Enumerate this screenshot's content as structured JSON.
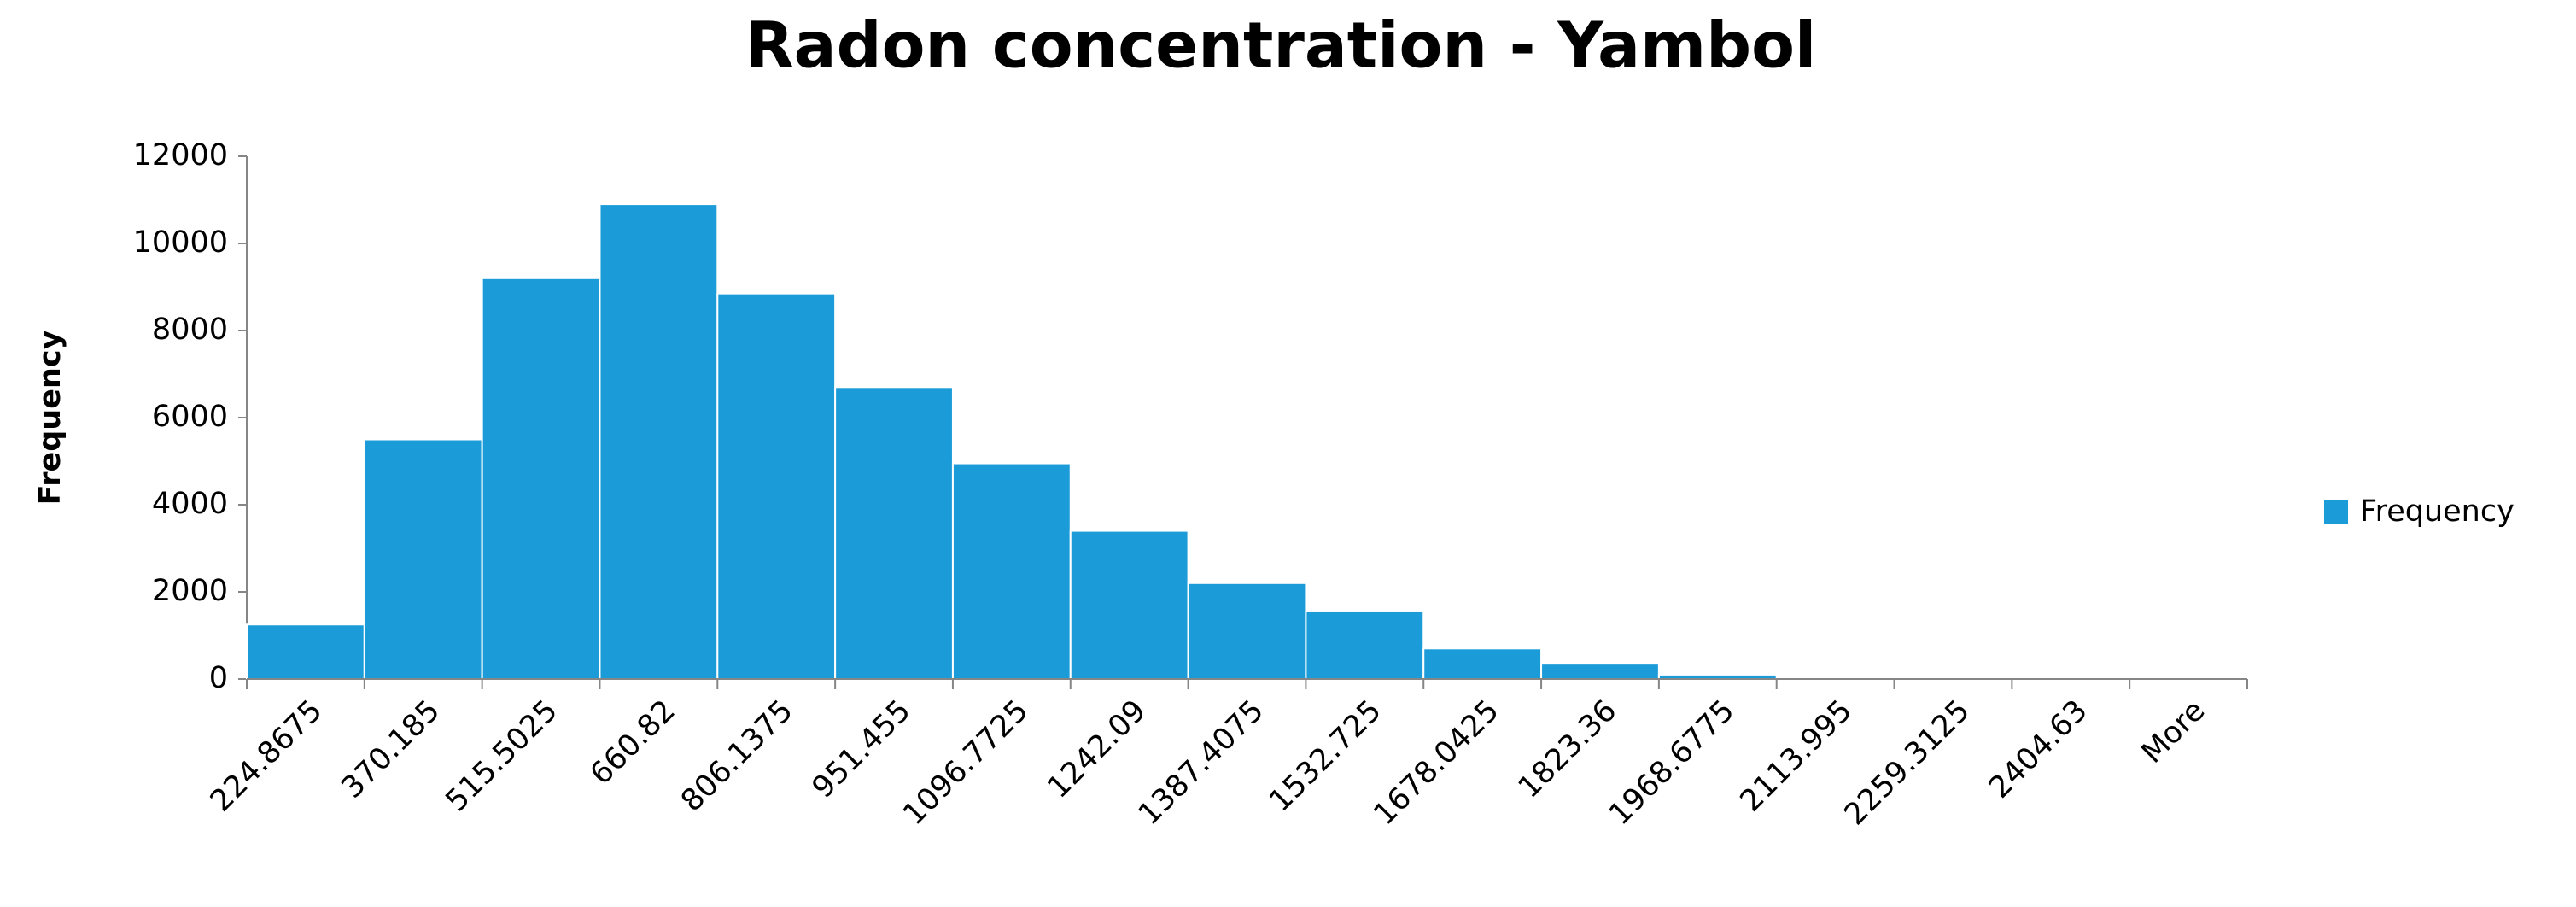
{
  "chart_data": {
    "type": "bar",
    "title": "Radon concentration - Yambol",
    "y_label": "Frequency",
    "categories": [
      "224.8675",
      "370.185",
      "515.5025",
      "660.82",
      "806.1375",
      "951.455",
      "1096.7725",
      "1242.09",
      "1387.4075",
      "1532.725",
      "1678.0425",
      "1823.36",
      "1968.6775",
      "2113.995",
      "2259.3125",
      "2404.63",
      "More"
    ],
    "series": [
      {
        "name": "Frequency",
        "color": "#1b9cd9",
        "values": [
          1250,
          5500,
          9200,
          10900,
          8850,
          6700,
          4950,
          3400,
          2200,
          1550,
          700,
          350,
          100,
          0,
          0,
          0,
          0
        ]
      }
    ],
    "ylim": [
      0,
      12000
    ],
    "yticks": [
      0,
      2000,
      4000,
      6000,
      8000,
      10000,
      12000
    ],
    "grid": false,
    "legend": "right"
  }
}
